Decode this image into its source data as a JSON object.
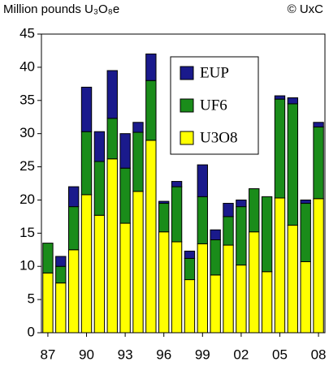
{
  "chart_data": {
    "type": "stacked_bar",
    "title": "Million pounds U₃O₈e",
    "annotation": "© UxC",
    "categories": [
      "87",
      null,
      null,
      "90",
      null,
      null,
      "93",
      null,
      null,
      "96",
      null,
      null,
      "99",
      null,
      null,
      "02",
      null,
      null,
      "05",
      null,
      null,
      "08"
    ],
    "series": [
      {
        "name": "U3O8",
        "color": "#ffff00",
        "values": [
          9,
          7.5,
          12.5,
          20.8,
          17.7,
          26.2,
          16.5,
          21.3,
          29,
          15.2,
          13.7,
          8,
          13.4,
          8.7,
          13.2,
          10.2,
          15.2,
          9.2,
          20.3,
          16.2,
          10.7,
          20.2
        ]
      },
      {
        "name": "UF6",
        "color": "#1a8c1a",
        "values": [
          4.5,
          2.5,
          6.5,
          9.5,
          8.1,
          6.1,
          8.3,
          8.9,
          9,
          4.3,
          8.3,
          3.2,
          7.1,
          5.3,
          4.3,
          8.8,
          6.5,
          11.3,
          14.9,
          18.3,
          8.8,
          10.8
        ]
      },
      {
        "name": "EUP",
        "color": "#1a1a8c",
        "values": [
          0,
          1.5,
          3,
          6.7,
          4.5,
          7.2,
          5.2,
          1.5,
          4,
          0.3,
          0.8,
          1.1,
          4.8,
          1.5,
          2,
          1,
          0,
          0,
          0.5,
          0.9,
          0.5,
          0.7
        ]
      }
    ],
    "ylim": [
      0,
      45
    ],
    "yticks": [
      0,
      5,
      10,
      15,
      20,
      25,
      30,
      35,
      40,
      45
    ]
  }
}
